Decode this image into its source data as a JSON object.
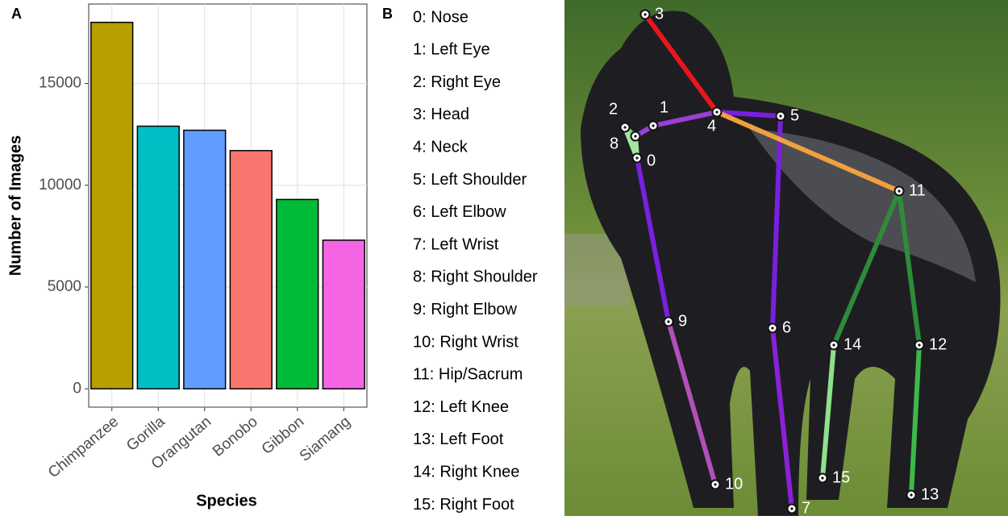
{
  "chart_data": {
    "type": "bar",
    "panel_label": "A",
    "x_label": "Species",
    "y_label": "Number of Images",
    "categories": [
      "Chimpanzee",
      "Gorilla",
      "Orangutan",
      "Bonobo",
      "Gibbon",
      "Siamang"
    ],
    "values": [
      18000,
      12900,
      12700,
      11700,
      9300,
      7300
    ],
    "colors": [
      "#B79F00",
      "#00BFC4",
      "#619CFF",
      "#F8766D",
      "#00BA38",
      "#F564E3"
    ],
    "ylim": [
      -900,
      18900
    ],
    "yticks": [
      0,
      5000,
      10000,
      15000
    ],
    "grid": true
  },
  "keypoints": {
    "panel_label": "B",
    "legend": [
      "0: Nose",
      "1: Left Eye",
      "2: Right Eye",
      "3: Head",
      "4: Neck",
      "5: Left Shoulder",
      "6: Left Elbow",
      "7: Left Wrist",
      "8: Right Shoulder",
      "9: Right Elbow",
      "10: Right Wrist",
      "11: Hip/Sacrum",
      "12: Left Knee",
      "13: Left Foot",
      "14: Right Knee",
      "15: Right Foot"
    ],
    "point_labels": [
      "0",
      "1",
      "2",
      "3",
      "4",
      "5",
      "6",
      "7",
      "8",
      "9",
      "10",
      "11",
      "12",
      "13",
      "14",
      "15"
    ]
  }
}
